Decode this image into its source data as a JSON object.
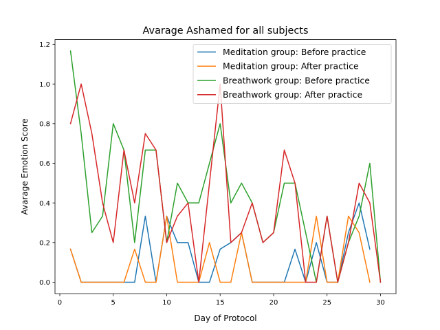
{
  "chart_data": {
    "type": "line",
    "title": "Avarage Ashamed for all subjects",
    "xlabel": "Day of Protocol",
    "ylabel": "Avarage Emotion Score",
    "xlim": [
      -0.45,
      31.45
    ],
    "ylim": [
      -0.058,
      1.224
    ],
    "xticks": [
      0,
      5,
      10,
      15,
      20,
      25,
      30
    ],
    "yticks": [
      0.0,
      0.2,
      0.4,
      0.6,
      0.8,
      1.0,
      1.2
    ],
    "xtick_labels": [
      "0",
      "5",
      "10",
      "15",
      "20",
      "25",
      "30"
    ],
    "ytick_labels": [
      "0.0",
      "0.2",
      "0.4",
      "0.6",
      "0.8",
      "1.0",
      "1.2"
    ],
    "grid": false,
    "legend_position": "top-right",
    "series": [
      {
        "name": "Meditation group: Before practice",
        "color": "#1f77b4",
        "x": [
          1,
          2,
          3,
          4,
          5,
          6,
          7,
          8,
          9,
          10,
          11,
          12,
          13,
          14,
          15,
          16,
          17,
          18,
          19,
          20,
          21,
          22,
          23,
          24,
          25,
          26,
          27,
          28,
          29
        ],
        "y": [
          0.1667,
          0,
          0,
          0,
          0,
          0,
          0,
          0.3333,
          0,
          0.3333,
          0.2,
          0.2,
          0,
          0,
          0.1667,
          0.2,
          0.25,
          0,
          0,
          0,
          0,
          0.1667,
          0,
          0.2,
          0,
          0,
          0.25,
          0.4,
          0.1667
        ]
      },
      {
        "name": "Meditation group: After practice",
        "color": "#ff7f0e",
        "x": [
          1,
          2,
          3,
          4,
          5,
          6,
          7,
          8,
          9,
          10,
          11,
          12,
          13,
          14,
          15,
          16,
          17,
          18,
          19,
          20,
          21,
          22,
          23,
          24,
          25,
          26,
          27,
          28,
          29
        ],
        "y": [
          0.1667,
          0,
          0,
          0,
          0,
          0,
          0.1667,
          0,
          0,
          0.3333,
          0,
          0,
          0,
          0.2,
          0,
          0,
          0.25,
          0,
          0,
          0,
          0,
          0,
          0,
          0.3333,
          0,
          0,
          0.3333,
          0.25,
          0
        ]
      },
      {
        "name": "Breathwork group: Before practice",
        "color": "#2ca02c",
        "x": [
          1,
          2,
          3,
          4,
          5,
          6,
          7,
          8,
          9,
          10,
          11,
          12,
          13,
          14,
          15,
          16,
          17,
          18,
          19,
          20,
          21,
          22,
          23,
          24,
          25,
          26,
          27,
          28,
          29,
          30
        ],
        "y": [
          1.1667,
          0.75,
          0.25,
          0.3333,
          0.8,
          0.6667,
          0.2,
          0.6667,
          0.6667,
          0.2,
          0.5,
          0.4,
          0.4,
          0.6,
          0.8,
          0.4,
          0.5,
          0.4,
          0.2,
          0.25,
          0.5,
          0.5,
          0.25,
          0,
          0.3333,
          0,
          0.2,
          0.3333,
          0.6,
          0
        ]
      },
      {
        "name": "Breathwork group: After practice",
        "color": "#d62728",
        "x": [
          1,
          2,
          3,
          4,
          5,
          6,
          7,
          8,
          9,
          10,
          11,
          12,
          13,
          14,
          15,
          16,
          17,
          18,
          19,
          20,
          21,
          22,
          23,
          24,
          25,
          26,
          27,
          28,
          29,
          30
        ],
        "y": [
          0.8,
          1.0,
          0.75,
          0.4,
          0.2,
          0.6667,
          0.4,
          0.75,
          0.6667,
          0.2,
          0.3333,
          0.4,
          0,
          0.5,
          1.0,
          0.2,
          0.25,
          0.4,
          0.2,
          0.25,
          0.6667,
          0.5,
          0,
          0,
          0.3333,
          0,
          0.2,
          0.5,
          0.4,
          0
        ]
      }
    ]
  }
}
